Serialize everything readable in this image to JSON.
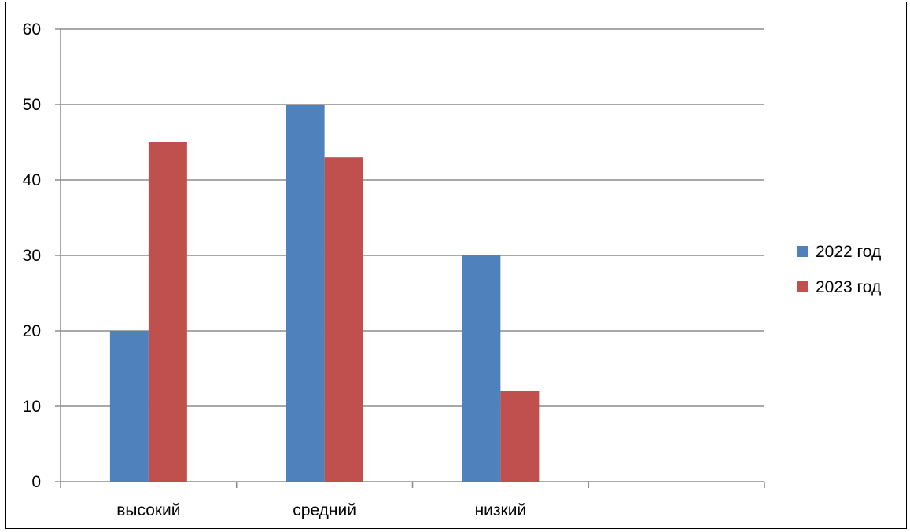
{
  "chart_data": {
    "type": "bar",
    "categories": [
      "высокий",
      "средний",
      "низкий",
      ""
    ],
    "series": [
      {
        "name": "2022 год",
        "values": [
          20,
          50,
          30,
          null
        ],
        "color": "#4F81BD"
      },
      {
        "name": "2023 год",
        "values": [
          45,
          43,
          12,
          null
        ],
        "color": "#C0504D"
      }
    ],
    "title": "",
    "xlabel": "",
    "ylabel": "",
    "ylim": [
      0,
      60
    ],
    "y_ticks": [
      0,
      10,
      20,
      30,
      40,
      50,
      60
    ],
    "y_tick_labels": [
      "0",
      "10",
      "20",
      "30",
      "40",
      "50",
      "60"
    ],
    "grid": true,
    "legend_position": "right"
  }
}
